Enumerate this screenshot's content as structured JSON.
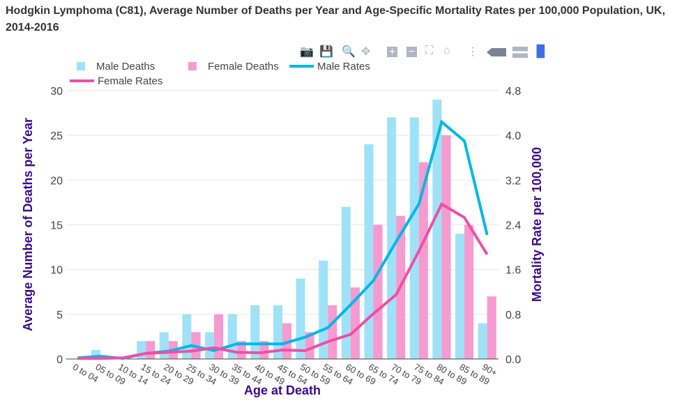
{
  "chart_data": {
    "type": "bar+line",
    "title": "Hodgkin Lymphoma (C81), Average Number of Deaths per Year and Age-Specific Mortality Rates per 100,000 Population, UK, 2014-2016",
    "xlabel": "Age at Death",
    "ylabel": "Average Number of Deaths per Year",
    "y2label": "Mortality Rate per 100,000",
    "ylim": [
      0,
      30
    ],
    "y2lim": [
      0,
      4.8
    ],
    "yticks": [
      "0",
      "5",
      "10",
      "15",
      "20",
      "25",
      "30"
    ],
    "y2ticks": [
      "0.0",
      "0.8",
      "1.6",
      "2.4",
      "3.2",
      "4.0",
      "4.8"
    ],
    "grid": true,
    "legend": "top-left",
    "categories": [
      "0 to 04",
      "05 to 09",
      "10 to 14",
      "15 to 24",
      "20 to 29",
      "25 to 34",
      "30 to 39",
      "35 to 44",
      "40 to 49",
      "45 to 54",
      "50 to 59",
      "55 to 64",
      "60 to 69",
      "65 to 74",
      "70 to 79",
      "75 to 84",
      "80 to 89",
      "85 to 89",
      "90+"
    ],
    "series": [
      {
        "name": "Male Deaths",
        "type": "bar",
        "axis": "left",
        "color": "#9fe2f7",
        "values": [
          0,
          1,
          0,
          2,
          3,
          5,
          3,
          5,
          6,
          6,
          9,
          11,
          17,
          24,
          27,
          27,
          29,
          14,
          4
        ]
      },
      {
        "name": "Female Deaths",
        "type": "bar",
        "axis": "left",
        "color": "#f59bd0",
        "values": [
          0,
          0,
          0,
          2,
          2,
          3,
          5,
          2,
          2,
          4,
          3,
          6,
          8,
          15,
          16,
          22,
          25,
          15,
          7
        ]
      },
      {
        "name": "Male Rates",
        "type": "line",
        "axis": "right",
        "color": "#00b8e6",
        "values": [
          0.02,
          0.05,
          0.01,
          0.1,
          0.14,
          0.24,
          0.15,
          0.27,
          0.27,
          0.27,
          0.39,
          0.56,
          0.97,
          1.4,
          2.1,
          2.77,
          4.24,
          3.9,
          2.22
        ]
      },
      {
        "name": "Female Rates",
        "type": "line",
        "axis": "right",
        "color": "#ef4fa6",
        "values": [
          0.01,
          0.01,
          0.02,
          0.1,
          0.12,
          0.14,
          0.2,
          0.12,
          0.11,
          0.16,
          0.15,
          0.31,
          0.44,
          0.81,
          1.15,
          1.93,
          2.77,
          2.53,
          1.87
        ]
      }
    ]
  },
  "toolbar": [
    "camera-icon",
    "save-icon",
    "zoom-icon",
    "pan-icon",
    "zoom-in-icon",
    "zoom-out-icon",
    "autoscale-icon",
    "home-icon",
    "spike-lines-icon",
    "hover-closest-icon",
    "hover-compare-icon",
    "plotly-logo-icon"
  ]
}
